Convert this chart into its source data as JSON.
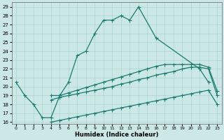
{
  "background_color": "#cce8e6",
  "grid_color": "#aad4d0",
  "line_color": "#1a7a6e",
  "xlabel": "Humidex (Indice chaleur)",
  "xlim": [
    -0.5,
    23.5
  ],
  "ylim": [
    15.8,
    29.5
  ],
  "xticks": [
    0,
    1,
    2,
    3,
    4,
    5,
    6,
    7,
    8,
    9,
    10,
    11,
    12,
    13,
    14,
    15,
    16,
    17,
    18,
    19,
    20,
    21,
    22,
    23
  ],
  "yticks": [
    16,
    17,
    18,
    19,
    20,
    21,
    22,
    23,
    24,
    25,
    26,
    27,
    28,
    29
  ],
  "curve_main": {
    "x": [
      0,
      1,
      2,
      3,
      4,
      5,
      6,
      7,
      8,
      9,
      10,
      11,
      12,
      13,
      14,
      16,
      21,
      22
    ],
    "y": [
      20.5,
      19.0,
      18.0,
      16.5,
      16.5,
      19.0,
      20.5,
      23.5,
      24.0,
      26.0,
      27.5,
      27.5,
      28.0,
      27.5,
      29.0,
      25.5,
      22.0,
      20.5
    ]
  },
  "curve_a": {
    "x": [
      4,
      5,
      6,
      7,
      8,
      9,
      10,
      11,
      12,
      13,
      14,
      15,
      16,
      17,
      18,
      19,
      20,
      21,
      22,
      23
    ],
    "y": [
      19.0,
      19.0,
      19.3,
      19.6,
      19.9,
      20.2,
      20.5,
      20.8,
      21.1,
      21.4,
      21.7,
      22.0,
      22.3,
      22.5,
      22.5,
      22.5,
      22.5,
      22.5,
      22.2,
      19.5
    ]
  },
  "curve_b": {
    "x": [
      4,
      5,
      6,
      7,
      8,
      9,
      10,
      11,
      12,
      13,
      14,
      15,
      16,
      17,
      18,
      19,
      20,
      21,
      22,
      23
    ],
    "y": [
      18.5,
      18.8,
      19.0,
      19.2,
      19.4,
      19.6,
      19.8,
      20.0,
      20.3,
      20.5,
      20.8,
      21.0,
      21.3,
      21.5,
      21.7,
      22.0,
      22.2,
      22.2,
      22.0,
      19.0
    ]
  },
  "curve_c": {
    "x": [
      4,
      5,
      6,
      7,
      8,
      9,
      10,
      11,
      12,
      13,
      14,
      15,
      16,
      17,
      18,
      19,
      20,
      21,
      22,
      23
    ],
    "y": [
      16.0,
      16.2,
      16.4,
      16.6,
      16.8,
      17.0,
      17.2,
      17.4,
      17.6,
      17.8,
      18.0,
      18.2,
      18.4,
      18.6,
      18.8,
      19.0,
      19.2,
      19.4,
      19.6,
      18.0
    ]
  }
}
